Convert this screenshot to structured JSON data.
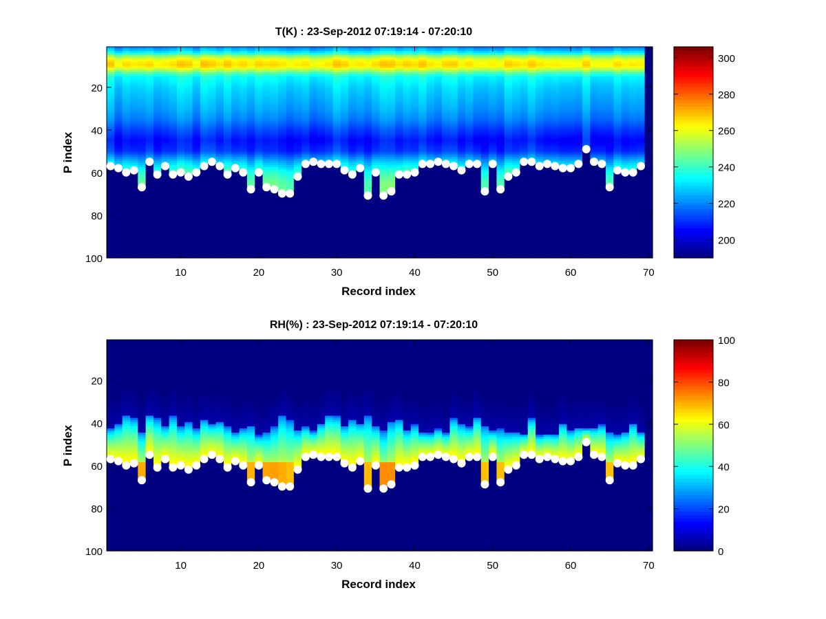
{
  "colors": {
    "background": "#ffffff",
    "marker": "#ffffff",
    "colormap": "jet"
  },
  "chart_data": [
    {
      "type": "heatmap",
      "title": "T(K) : 23-Sep-2012 07:19:14 - 07:20:10",
      "xlabel": "Record index",
      "ylabel": "P index",
      "xlim": [
        0.5,
        70.5
      ],
      "ylim": [
        1,
        100
      ],
      "y_reversed": true,
      "xticks": [
        "10",
        "20",
        "30",
        "40",
        "50",
        "60",
        "70"
      ],
      "yticks": [
        "20",
        "40",
        "60",
        "80",
        "100"
      ],
      "colorbar": {
        "min": 190,
        "max": 306,
        "ticks": [
          "200",
          "220",
          "240",
          "260",
          "280",
          "300"
        ]
      },
      "n_records": 70,
      "n_levels": 100,
      "field_description_profile": {
        "upper_band_levels": [
          1,
          2,
          3,
          4,
          5,
          6,
          7,
          8,
          9,
          10,
          11,
          12,
          13,
          14,
          15,
          20,
          25,
          30,
          35,
          40,
          45,
          50,
          55,
          60,
          65,
          70,
          80,
          100
        ],
        "upper_band_values": [
          222,
          226,
          232,
          240,
          250,
          258,
          262,
          265,
          266,
          264,
          258,
          250,
          243,
          238,
          234,
          229,
          226,
          223,
          219,
          212,
          206,
          209,
          224,
          236,
          241,
          240,
          190,
          190
        ]
      },
      "masked_value": 190
    },
    {
      "type": "heatmap",
      "title": "RH(%) : 23-Sep-2012 07:19:14 - 07:20:10",
      "xlabel": "Record index",
      "ylabel": "P index",
      "xlim": [
        0.5,
        70.5
      ],
      "ylim": [
        1,
        100
      ],
      "y_reversed": true,
      "xticks": [
        "10",
        "20",
        "30",
        "40",
        "50",
        "60",
        "70"
      ],
      "yticks": [
        "20",
        "40",
        "60",
        "80",
        "100"
      ],
      "colorbar": {
        "min": 0,
        "max": 100,
        "ticks": [
          "0",
          "20",
          "40",
          "60",
          "80",
          "100"
        ]
      },
      "n_records": 70,
      "n_levels": 100,
      "masked_value": 0
    }
  ],
  "markers": {
    "records": [
      1,
      2,
      3,
      4,
      5,
      6,
      7,
      8,
      9,
      10,
      11,
      12,
      13,
      14,
      15,
      16,
      17,
      18,
      19,
      20,
      21,
      22,
      23,
      24,
      25,
      26,
      27,
      28,
      29,
      30,
      31,
      32,
      33,
      34,
      35,
      36,
      37,
      38,
      39,
      40,
      41,
      42,
      43,
      44,
      45,
      46,
      47,
      48,
      49,
      50,
      51,
      52,
      53,
      54,
      55,
      56,
      57,
      58,
      59,
      60,
      61,
      62,
      63,
      64,
      65,
      66,
      67,
      68,
      69
    ],
    "p_index": [
      57,
      58,
      60,
      59,
      67,
      55,
      61,
      57,
      61,
      60,
      62,
      60,
      57,
      55,
      57,
      61,
      58,
      60,
      68,
      60,
      67,
      68,
      70,
      70,
      62,
      56,
      55,
      56,
      56,
      56,
      59,
      61,
      58,
      71,
      60,
      71,
      69,
      61,
      61,
      60,
      56,
      56,
      55,
      56,
      57,
      59,
      56,
      56,
      69,
      56,
      68,
      62,
      60,
      55,
      55,
      57,
      56,
      57,
      58,
      58,
      56,
      49,
      55,
      56,
      67,
      59,
      60,
      60,
      57
    ]
  }
}
